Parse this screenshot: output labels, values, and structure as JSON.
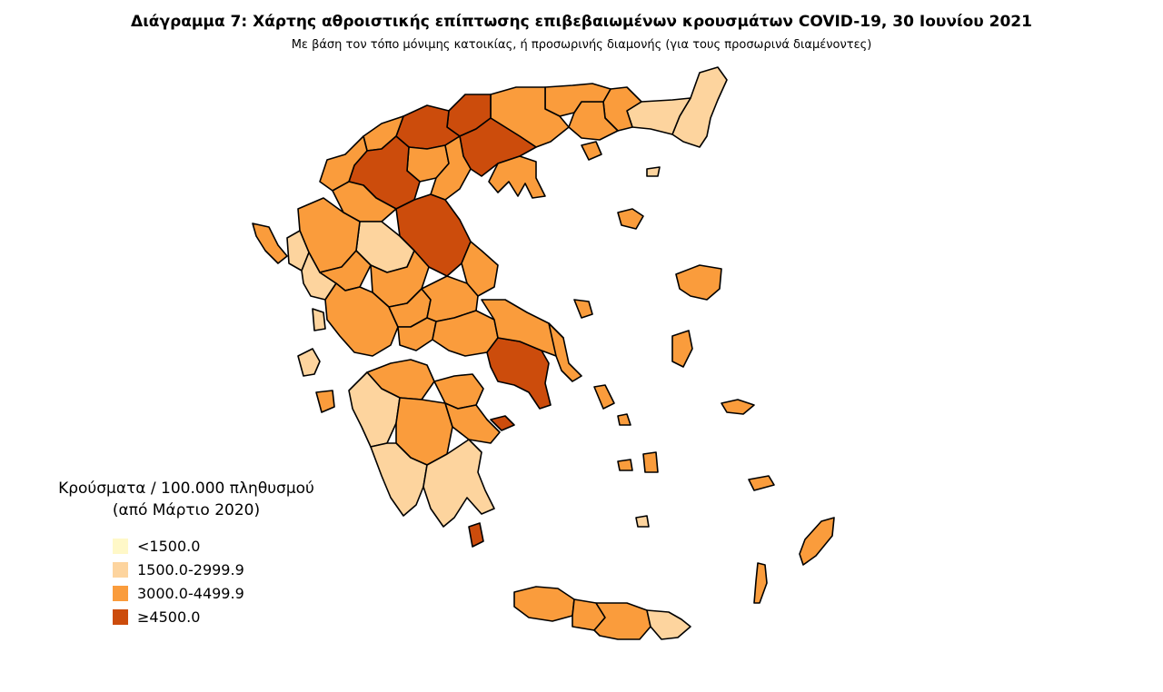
{
  "title": "Διάγραμμα 7: Χάρτης αθροιστικής επίπτωσης επιβεβαιωμένων κρουσμάτων COVID-19, 30 Ιουνίου 2021",
  "subtitle": "Με βάση τον τόπο μόνιμης κατοικίας, ή προσωρινής διαμονής (για τους προσωρινά διαμένοντες)",
  "legend": {
    "title_line1": "Κρούσματα / 100.000 πληθυσμού",
    "title_line2": "(από Μάρτιο 2020)",
    "classes": [
      {
        "label": "<1500.0",
        "color": "#fff8c8"
      },
      {
        "label": "1500.0-2999.9",
        "color": "#fdd49e"
      },
      {
        "label": "3000.0-4499.9",
        "color": "#fa9c3c"
      },
      {
        "label": "≥4500.0",
        "color": "#cc4c0c"
      }
    ]
  }
}
